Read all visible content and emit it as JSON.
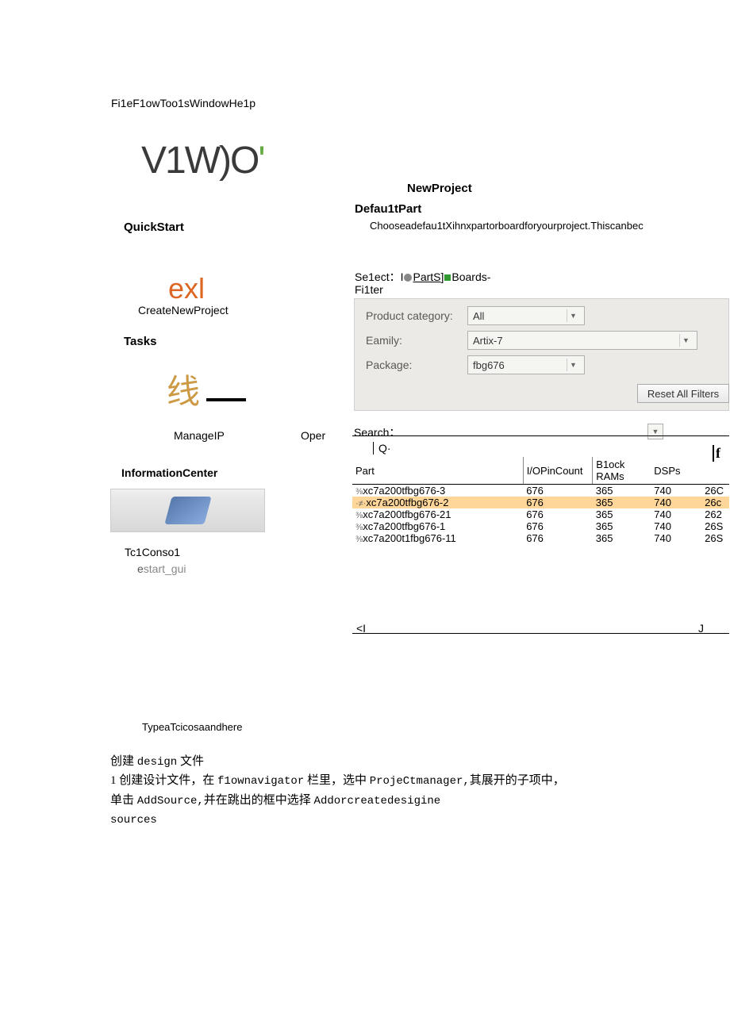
{
  "menuBar": "Fi1eF1owToo1sWindowHe1p",
  "logo": {
    "text": "V1W)O",
    "accent": "'"
  },
  "sections": {
    "quickStart": "QuickStart",
    "exl": "exl",
    "createNewProject": "CreateNewProject",
    "tasks": "Tasks",
    "tasksChar": "线",
    "manageIP": "ManageIP",
    "oper": "Oper",
    "infoCenter": "InformationCenter",
    "tc1Console": "Tc1Conso1",
    "estartE": "e",
    "estartRest": "start_gui"
  },
  "dialog": {
    "title": "NewProject",
    "subtitle": "Defau1tPart",
    "description": "Chooseadefau1tXihnxpartorboardforyourproject.Thiscanbec",
    "selectLabel": "Se1ect：I",
    "parts": "PartS",
    "boardsSuffix": "Boards-",
    "filter": "Fi1ter",
    "productCategory": "Product category:",
    "family": "Eamily:",
    "package": "Package:",
    "productValue": "All",
    "familyValue": "Artix-7",
    "packageValue": "fbg676",
    "reset": "Reset All Filters",
    "search": "Search：",
    "q": "Q·",
    "f": "f",
    "headers": {
      "part": "Part",
      "io": "I/OPinCount",
      "ram": "B1ock RAMs",
      "dsp": "DSPs"
    },
    "rows": [
      {
        "prefix": "⅜",
        "part": "xc7a200tfbg676-3",
        "io": "676",
        "ram": "365",
        "bram": "740",
        "dsp": "26C",
        "hl": false
      },
      {
        "prefix": "·≠·",
        "part": "xc7a200tfbg676-2",
        "io": "676",
        "ram": "365",
        "bram": "740",
        "dsp": "26c",
        "hl": true
      },
      {
        "prefix": "⅜",
        "part": "xc7a200tfbg676-21",
        "io": "676",
        "ram": "365",
        "bram": "740",
        "dsp": "262",
        "hl": false
      },
      {
        "prefix": "⅜",
        "part": "xc7a200tfbg676-1",
        "io": "676",
        "ram": "365",
        "bram": "740",
        "dsp": "26S",
        "hl": false
      },
      {
        "prefix": "⅜",
        "part": "xc7a200t1fbg676-11",
        "io": "676",
        "ram": "365",
        "bram": "740",
        "dsp": "26S",
        "hl": false
      }
    ],
    "bottomLeft": "<I",
    "bottomRight": "J"
  },
  "footer": {
    "typeTc": "TypeaTcicosaandhere",
    "line1a": "创建 ",
    "line1b": "design",
    "line1c": " 文件",
    "line2a": "1 创建设计文件，在 ",
    "line2b": "f1ownavigator",
    "line2c": " 栏里，选中 ",
    "line2d": "ProjeCtmanager,",
    "line2e": "其展开的子项中，",
    "line3a": "单击 ",
    "line3b": "AddSource,",
    "line3c": "并在跳出的框中选择 ",
    "line3d": "Addorcreatedesigine",
    "line4": "sources"
  }
}
